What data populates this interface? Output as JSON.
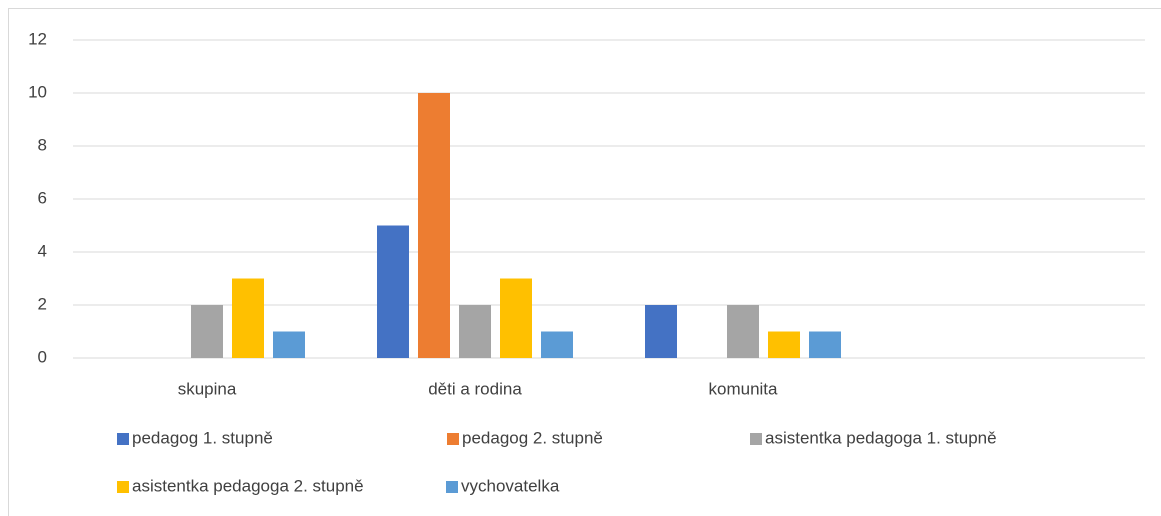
{
  "chart_data": {
    "type": "bar",
    "categories": [
      "skupina",
      "děti a rodina",
      "komunita",
      null
    ],
    "series": [
      {
        "name": "pedagog 1. stupně",
        "color": "#4472c4",
        "values": [
          0,
          5,
          2,
          null
        ]
      },
      {
        "name": "pedagog 2. stupně",
        "color": "#ed7d31",
        "values": [
          0,
          10,
          0,
          null
        ]
      },
      {
        "name": "asistentka pedagoga 1. stupně",
        "color": "#a5a5a5",
        "values": [
          2,
          2,
          2,
          null
        ]
      },
      {
        "name": "asistentka pedagoga 2. stupně",
        "color": "#ffc000",
        "values": [
          3,
          3,
          1,
          null
        ]
      },
      {
        "name": "vychovatelka",
        "color": "#5b9bd5",
        "values": [
          1,
          1,
          1,
          null
        ]
      }
    ],
    "ylim": [
      0,
      12
    ],
    "yticks": [
      0,
      2,
      4,
      6,
      8,
      10,
      12
    ],
    "grid": true,
    "legend": "bottom"
  }
}
